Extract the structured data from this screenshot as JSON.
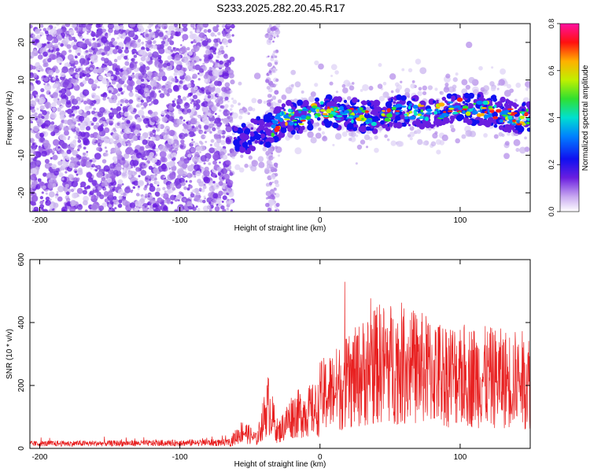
{
  "title": "S233.2025.282.20.45.R17",
  "chart_data": [
    {
      "type": "heatmap",
      "xlabel": "Height of straight line (km)",
      "ylabel": "Frequency (Hz)",
      "xlim": [
        -207,
        150
      ],
      "ylim": [
        -25,
        25
      ],
      "xticks": [
        -200,
        -100,
        0,
        100
      ],
      "yticks": [
        -20,
        -10,
        0,
        10,
        20
      ],
      "colorbar": {
        "label": "Normalized spectral amplitude",
        "range": [
          0,
          0.8
        ],
        "ticks": [
          0.0,
          0.2,
          0.4,
          0.6,
          0.8
        ],
        "colormap": "rainbow"
      },
      "signal_track": [
        {
          "x": -62,
          "y": -4
        },
        {
          "x": -55,
          "y": -6
        },
        {
          "x": -45,
          "y": -4
        },
        {
          "x": -35,
          "y": -3
        },
        {
          "x": -25,
          "y": 0
        },
        {
          "x": -15,
          "y": 0
        },
        {
          "x": 0,
          "y": 2
        },
        {
          "x": 20,
          "y": 1
        },
        {
          "x": 40,
          "y": 0
        },
        {
          "x": 60,
          "y": 2
        },
        {
          "x": 80,
          "y": 1
        },
        {
          "x": 100,
          "y": 3
        },
        {
          "x": 120,
          "y": 2
        },
        {
          "x": 140,
          "y": 0
        },
        {
          "x": 150,
          "y": 0
        }
      ]
    },
    {
      "type": "line",
      "xlabel": "Height of straight line (km)",
      "ylabel": "SNR (10 * v/v)",
      "xlim": [
        -207,
        150
      ],
      "ylim": [
        0,
        600
      ],
      "xticks": [
        -200,
        -100,
        0,
        100
      ],
      "yticks": [
        0,
        200,
        400,
        600
      ],
      "series": [
        {
          "name": "SNR",
          "color": "#e82020"
        }
      ],
      "envelope": [
        {
          "x": -207,
          "y": 20
        },
        {
          "x": -120,
          "y": 22
        },
        {
          "x": -65,
          "y": 25
        },
        {
          "x": -55,
          "y": 80
        },
        {
          "x": -45,
          "y": 40
        },
        {
          "x": -37,
          "y": 200
        },
        {
          "x": -30,
          "y": 70
        },
        {
          "x": -20,
          "y": 150
        },
        {
          "x": 0,
          "y": 180
        },
        {
          "x": 20,
          "y": 230
        },
        {
          "x": 40,
          "y": 300
        },
        {
          "x": 60,
          "y": 300
        },
        {
          "x": 80,
          "y": 270
        },
        {
          "x": 100,
          "y": 260
        },
        {
          "x": 120,
          "y": 250
        },
        {
          "x": 150,
          "y": 240
        }
      ]
    }
  ]
}
